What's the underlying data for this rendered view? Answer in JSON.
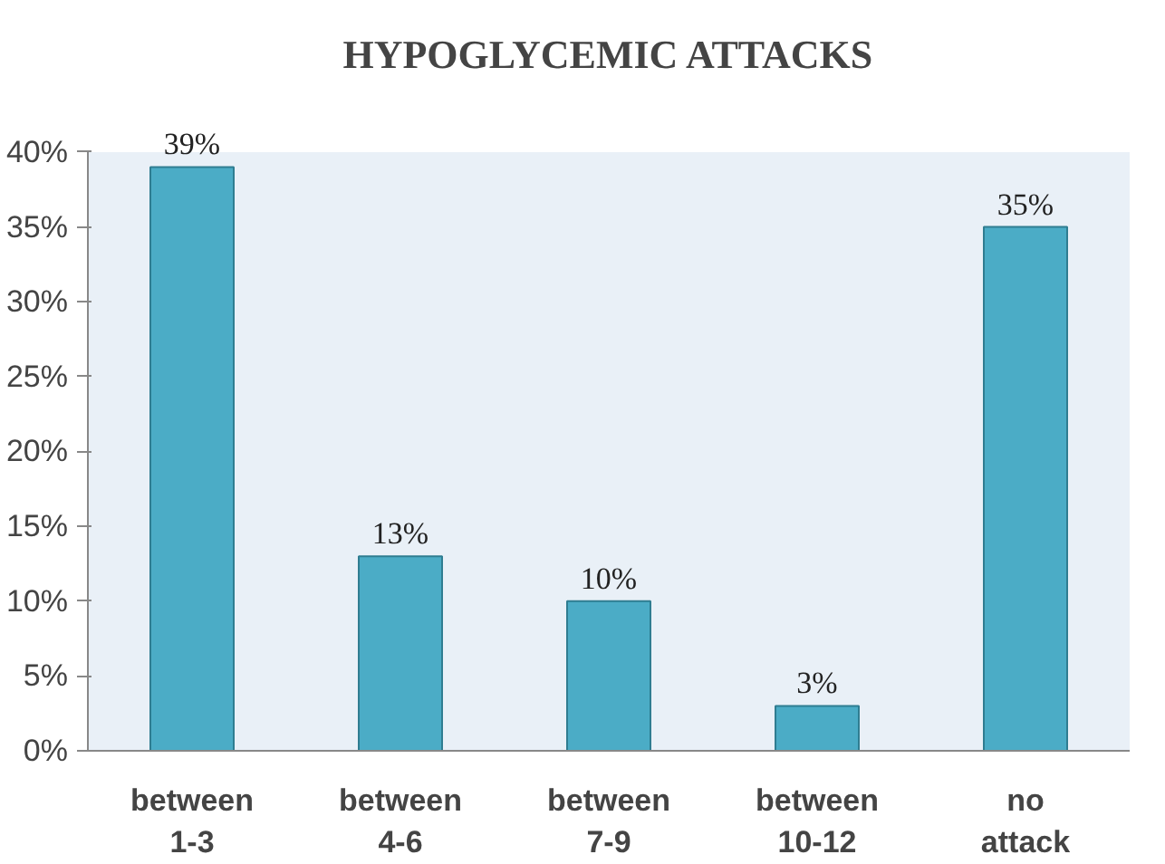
{
  "chart_data": {
    "type": "bar",
    "title": "HYPOGLYCEMIC ATTACKS",
    "categories": [
      "between\n1-3",
      "between\n4-6",
      "between\n7-9",
      "between\n10-12",
      "no\nattack"
    ],
    "values": [
      39,
      13,
      10,
      3,
      35
    ],
    "value_labels": [
      "39%",
      "13%",
      "10%",
      "3%",
      "35%"
    ],
    "color": "#4bacc6",
    "ylim": [
      0,
      40
    ],
    "yticks": [
      {
        "value": 0,
        "label": "0%"
      },
      {
        "value": 5,
        "label": "5%"
      },
      {
        "value": 10,
        "label": "10%"
      },
      {
        "value": 15,
        "label": "15%"
      },
      {
        "value": 20,
        "label": "20%"
      },
      {
        "value": 25,
        "label": "25%"
      },
      {
        "value": 30,
        "label": "30%"
      },
      {
        "value": 35,
        "label": "35%"
      },
      {
        "value": 40,
        "label": "40%"
      }
    ],
    "grid": false
  }
}
